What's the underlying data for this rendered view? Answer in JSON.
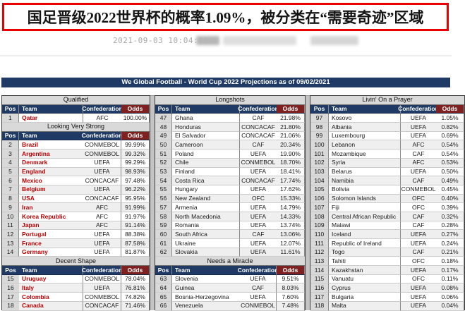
{
  "article": {
    "title": "国足晋级2022世界杯的概率1.09%，被分类在“需要奇迹”区域",
    "timestamp": "2021-09-03 10:04:01",
    "censored_source": "blurred-watermark"
  },
  "colors": {
    "title_border": "#e80000",
    "banner_bg": "#1f3a64",
    "odds_header_bg": "#7f2121",
    "team_highlight": "#c00000",
    "section_header_bg": "#d9d9d9"
  },
  "table": {
    "banner": "We Global Football - World Cup 2022 Projections as of 09/02/2021",
    "columns": [
      "Pos",
      "Team",
      "Confederation",
      "Odds"
    ],
    "blocks": [
      {
        "team_color": "#c00000",
        "emphasis": true,
        "sections": [
          {
            "title": "Qualified",
            "rows": [
              [
                "1",
                "Qatar",
                "AFC",
                "100.00%"
              ]
            ]
          },
          {
            "title": "Looking Very Strong",
            "rows": [
              [
                "2",
                "Brazil",
                "CONMEBOL",
                "99.99%"
              ],
              [
                "3",
                "Argentina",
                "CONMEBOL",
                "99.32%"
              ],
              [
                "4",
                "Denmark",
                "UEFA",
                "99.29%"
              ],
              [
                "5",
                "England",
                "UEFA",
                "98.93%"
              ],
              [
                "6",
                "Mexico",
                "CONCACAF",
                "97.48%"
              ],
              [
                "7",
                "Belgium",
                "UEFA",
                "96.22%"
              ],
              [
                "8",
                "USA",
                "CONCACAF",
                "95.95%"
              ],
              [
                "9",
                "Iran",
                "AFC",
                "91.99%"
              ],
              [
                "10",
                "Korea Republic",
                "AFC",
                "91.97%"
              ],
              [
                "11",
                "Japan",
                "AFC",
                "91.14%"
              ],
              [
                "12",
                "Portugal",
                "UEFA",
                "88.38%"
              ],
              [
                "13",
                "France",
                "UEFA",
                "87.58%"
              ],
              [
                "14",
                "Germany",
                "UEFA",
                "81.87%"
              ]
            ]
          },
          {
            "title": "Decent Shape",
            "rows": [
              [
                "15",
                "Uruguay",
                "CONMEBOL",
                "78.04%"
              ],
              [
                "16",
                "Italy",
                "UEFA",
                "76.81%"
              ],
              [
                "17",
                "Colombia",
                "CONMEBOL",
                "74.82%"
              ],
              [
                "18",
                "Canada",
                "CONCACAF",
                "71.46%"
              ]
            ]
          }
        ]
      },
      {
        "team_color": "#1a1a1a",
        "emphasis": false,
        "sections": [
          {
            "title": "Longshots",
            "rows": [
              [
                "47",
                "Ghana",
                "CAF",
                "21.98%"
              ],
              [
                "48",
                "Honduras",
                "CONCACAF",
                "21.80%"
              ],
              [
                "49",
                "El Salvador",
                "CONCACAF",
                "21.06%"
              ],
              [
                "50",
                "Cameroon",
                "CAF",
                "20.34%"
              ],
              [
                "51",
                "Poland",
                "UEFA",
                "19.90%"
              ],
              [
                "52",
                "Chile",
                "CONMEBOL",
                "18.70%"
              ],
              [
                "53",
                "Finland",
                "UEFA",
                "18.41%"
              ],
              [
                "54",
                "Costa Rica",
                "CONCACAF",
                "17.74%"
              ],
              [
                "55",
                "Hungary",
                "UEFA",
                "17.62%"
              ],
              [
                "56",
                "New Zealand",
                "OFC",
                "15.33%"
              ],
              [
                "57",
                "Armenia",
                "UEFA",
                "14.79%"
              ],
              [
                "58",
                "North Macedonia",
                "UEFA",
                "14.33%"
              ],
              [
                "59",
                "Romania",
                "UEFA",
                "13.74%"
              ],
              [
                "60",
                "South Africa",
                "CAF",
                "13.06%"
              ],
              [
                "61",
                "Ukraine",
                "UEFA",
                "12.07%"
              ],
              [
                "62",
                "Slovakia",
                "UEFA",
                "11.61%"
              ]
            ]
          },
          {
            "title": "Needs a Miracle",
            "rows": [
              [
                "63",
                "Slovenia",
                "UEFA",
                "9.51%"
              ],
              [
                "64",
                "Guinea",
                "CAF",
                "8.03%"
              ],
              [
                "65",
                "Bosnia-Herzegovina",
                "UEFA",
                "7.60%"
              ],
              [
                "66",
                "Venezuela",
                "CONMEBOL",
                "7.48%"
              ]
            ]
          }
        ]
      },
      {
        "team_color": "#1a1a1a",
        "emphasis": false,
        "sections": [
          {
            "title": "Livin' On a Prayer",
            "rows": [
              [
                "97",
                "Kosovo",
                "UEFA",
                "1.05%"
              ],
              [
                "98",
                "Albania",
                "UEFA",
                "0.82%"
              ],
              [
                "99",
                "Luxembourg",
                "UEFA",
                "0.69%"
              ],
              [
                "100",
                "Lebanon",
                "AFC",
                "0.54%"
              ],
              [
                "101",
                "Mozambique",
                "CAF",
                "0.54%"
              ],
              [
                "102",
                "Syria",
                "AFC",
                "0.53%"
              ],
              [
                "103",
                "Belarus",
                "UEFA",
                "0.50%"
              ],
              [
                "104",
                "Namibia",
                "CAF",
                "0.49%"
              ],
              [
                "105",
                "Bolivia",
                "CONMEBOL",
                "0.45%"
              ],
              [
                "106",
                "Solomon Islands",
                "OFC",
                "0.40%"
              ],
              [
                "107",
                "Fiji",
                "OFC",
                "0.39%"
              ],
              [
                "108",
                "Central African Republic",
                "CAF",
                "0.32%"
              ],
              [
                "109",
                "Malawi",
                "CAF",
                "0.28%"
              ],
              [
                "110",
                "Iceland",
                "UEFA",
                "0.27%"
              ],
              [
                "111",
                "Republic of Ireland",
                "UEFA",
                "0.24%"
              ],
              [
                "112",
                "Togo",
                "CAF",
                "0.21%"
              ],
              [
                "113",
                "Tahiti",
                "OFC",
                "0.18%"
              ],
              [
                "114",
                "Kazakhstan",
                "UEFA",
                "0.17%"
              ],
              [
                "115",
                "Vanuatu",
                "OFC",
                "0.11%"
              ],
              [
                "116",
                "Cyprus",
                "UEFA",
                "0.08%"
              ],
              [
                "117",
                "Bulgaria",
                "UEFA",
                "0.06%"
              ],
              [
                "118",
                "Malta",
                "UEFA",
                "0.04%"
              ]
            ]
          }
        ]
      }
    ]
  }
}
